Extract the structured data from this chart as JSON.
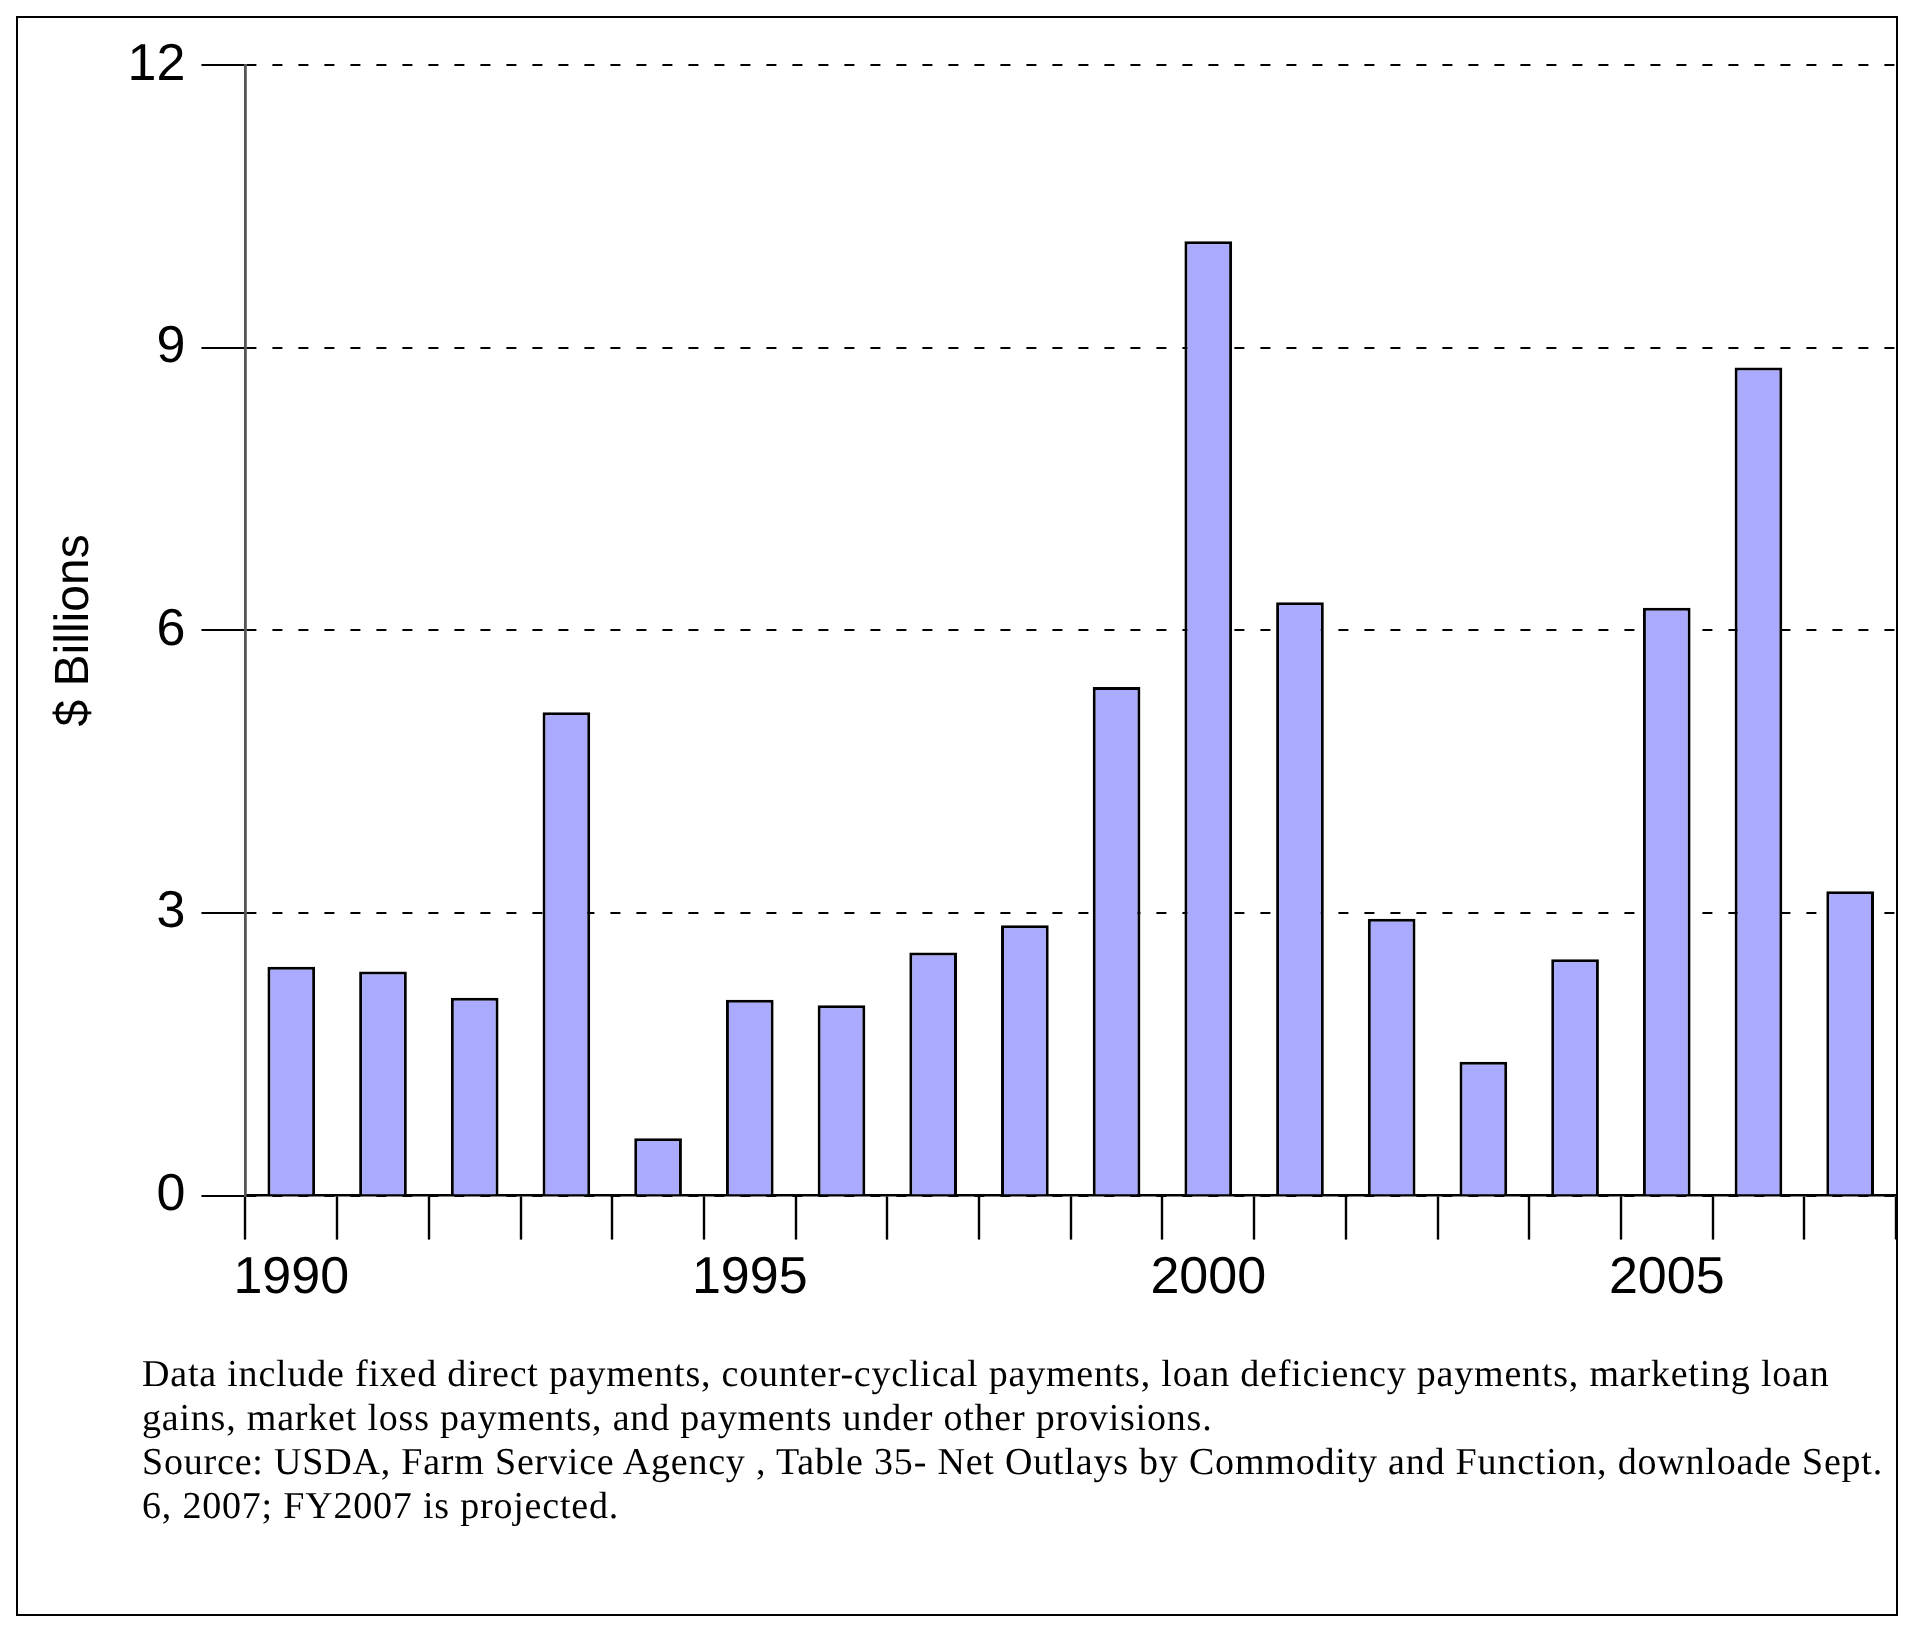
{
  "chart_data": {
    "type": "bar",
    "ylabel": "$ Billions",
    "categories": [
      "1990",
      null,
      null,
      null,
      null,
      "1995",
      null,
      null,
      null,
      null,
      "2000",
      null,
      null,
      null,
      null,
      "2005",
      null,
      null
    ],
    "values": [
      2.43,
      2.38,
      2.1,
      5.13,
      0.61,
      2.08,
      2.02,
      2.58,
      2.87,
      5.4,
      10.13,
      6.3,
      2.94,
      1.42,
      2.51,
      6.24,
      8.79,
      3.23
    ],
    "color": "#aaaaff",
    "ylim": [
      0,
      12
    ],
    "yticks": [
      0,
      3,
      6,
      9,
      12
    ],
    "grid": "y",
    "annotations": [
      "Data include fixed direct payments, counter-cyclical payments, loan deficiency payments, marketing loan gains, market loss payments, and payments under other provisions.",
      "Source: USDA, Farm Service Agency , Table 35- Net Outlays by Commodity and Function, downloade Sept. 6, 2007; FY2007 is projected."
    ]
  }
}
